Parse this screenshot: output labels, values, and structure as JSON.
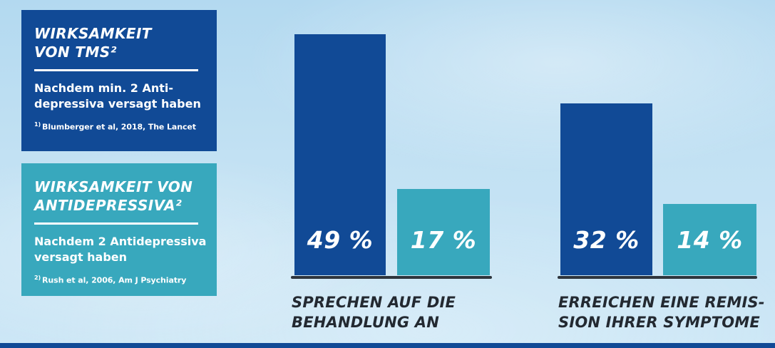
{
  "colors": {
    "tms_blue": "#114a96",
    "antidepressiva_teal": "#38a8bd",
    "axis_dark": "#2e353d",
    "caption_text": "#232931",
    "label_white": "#ffffff",
    "sky_light_blue": "#c2e1f3"
  },
  "legend": {
    "tms": {
      "title_line1": "WIRKSAMKEIT",
      "title_line2": "VON TMS²",
      "body_line1": "Nachdem min. 2 Anti-",
      "body_line2": "depressiva versagt haben",
      "footnote_marker": "1)",
      "footnote_text": "Blumberger et al, 2018, The Lancet"
    },
    "antidepressiva": {
      "title_line1": "WIRKSAMKEIT VON",
      "title_line2": "ANTIDEPRESSIVA²",
      "body_line1": "Nachdem 2 Antidepressiva",
      "body_line2": "versagt haben",
      "footnote_marker": "2)",
      "footnote_text": "Rush et al, 2006,  Am J Psychiatry"
    }
  },
  "chart": {
    "response": {
      "tms_label": "49 %",
      "ad_label": "17 %",
      "caption_line1": "SPRECHEN AUF DIE",
      "caption_line2": "BEHANDLUNG AN"
    },
    "remission": {
      "tms_label": "32 %",
      "ad_label": "14 %",
      "caption_line1": "ERREICHEN EINE REMIS-",
      "caption_line2": "SION IHRER SYMPTOME"
    }
  },
  "chart_data": {
    "type": "bar",
    "categories": [
      "Sprechen auf die Behandlung an",
      "Erreichen eine Remission ihrer Symptome"
    ],
    "series": [
      {
        "name": "Wirksamkeit von TMS² (Nachdem min. 2 Antidepressiva versagt haben)",
        "values": [
          49,
          32
        ],
        "color": "#114a96",
        "source": "Blumberger et al, 2018, The Lancet"
      },
      {
        "name": "Wirksamkeit von Antidepressiva² (Nachdem 2 Antidepressiva versagt haben)",
        "values": [
          17,
          14
        ],
        "color": "#38a8bd",
        "source": "Rush et al, 2006, Am J Psychiatry"
      }
    ],
    "value_unit": "%",
    "ylim": [
      0,
      50
    ],
    "grid": false,
    "data_labels": true,
    "legend_position": "left"
  }
}
